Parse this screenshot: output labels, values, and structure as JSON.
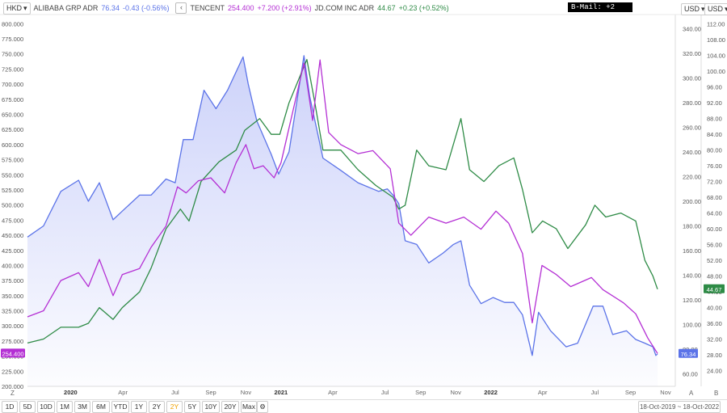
{
  "header": {
    "currency_selector": "HKD",
    "news_ticker": "B-Mail: +2",
    "right_currency_1": "USD",
    "right_currency_2": "USD",
    "collapse_icon": "chevron-left-icon",
    "legend": [
      {
        "name": "ALIBABA GRP ADR",
        "price": "76.34",
        "change": "-0.43 (-0.56%)",
        "color": "#5b73e8"
      },
      {
        "name": "TENCENT",
        "price": "254.400",
        "change": "+7.200 (+2.91%)",
        "color": "#b42fd4"
      },
      {
        "name": "JD.COM INC ADR",
        "price": "44.67",
        "change": "+0.23 (+0.52%)",
        "color": "#2e8b46"
      }
    ]
  },
  "chart_data": {
    "type": "line",
    "x_range": [
      "2019-10-18",
      "2022-10-18"
    ],
    "x_ticks": [
      "2020",
      "Apr",
      "Jul",
      "Sep",
      "Nov",
      "2021",
      "Apr",
      "Jul",
      "Sep",
      "Nov",
      "2022",
      "Apr",
      "Jul",
      "Sep",
      "Nov"
    ],
    "y_axes": {
      "left": {
        "unit": "HKD",
        "range": [
          200,
          812.5
        ],
        "ticks": [
          "800.000",
          "775.000",
          "750.000",
          "725.000",
          "700.000",
          "675.000",
          "650.000",
          "625.000",
          "600.000",
          "575.000",
          "550.000",
          "525.000",
          "500.000",
          "475.000",
          "450.000",
          "425.000",
          "400.000",
          "375.000",
          "350.000",
          "325.000",
          "300.000",
          "275.000",
          "250.000",
          "225.000",
          "200.000"
        ]
      },
      "right_1": {
        "unit": "USD",
        "range": [
          50,
          350
        ],
        "ticks": [
          "340.00",
          "320.00",
          "300.00",
          "280.00",
          "260.00",
          "240.00",
          "220.00",
          "200.00",
          "180.00",
          "160.00",
          "140.00",
          "120.00",
          "100.00",
          "80.00",
          "60.00"
        ]
      },
      "right_2": {
        "unit": "USD",
        "range": [
          20,
          114
        ],
        "ticks": [
          "112.00",
          "108.00",
          "104.00",
          "100.00",
          "96.00",
          "92.00",
          "88.00",
          "84.00",
          "80.00",
          "76.00",
          "72.00",
          "68.00",
          "64.00",
          "60.00",
          "56.00",
          "52.00",
          "48.00",
          "44.00",
          "40.00",
          "36.00",
          "32.00",
          "28.00",
          "24.00"
        ]
      }
    },
    "series": [
      {
        "name": "ALIBABA GRP ADR",
        "axis": "right_1",
        "color": "#5b73e8",
        "last_label": "76.34",
        "fill": true,
        "points": [
          [
            "2019-10-18",
            171
          ],
          [
            "2019-11-15",
            180
          ],
          [
            "2019-12-15",
            208
          ],
          [
            "2020-01-15",
            217
          ],
          [
            "2020-02-01",
            200
          ],
          [
            "2020-02-20",
            215
          ],
          [
            "2020-03-15",
            185
          ],
          [
            "2020-03-31",
            192
          ],
          [
            "2020-04-30",
            205
          ],
          [
            "2020-05-20",
            205
          ],
          [
            "2020-06-15",
            218
          ],
          [
            "2020-07-01",
            215
          ],
          [
            "2020-07-15",
            250
          ],
          [
            "2020-08-01",
            250
          ],
          [
            "2020-08-20",
            290
          ],
          [
            "2020-09-10",
            275
          ],
          [
            "2020-09-30",
            290
          ],
          [
            "2020-10-27",
            317
          ],
          [
            "2020-11-05",
            295
          ],
          [
            "2020-11-20",
            265
          ],
          [
            "2020-12-15",
            238
          ],
          [
            "2020-12-28",
            222
          ],
          [
            "2021-01-15",
            240
          ],
          [
            "2021-02-10",
            318
          ],
          [
            "2021-02-20",
            285
          ],
          [
            "2021-03-15",
            235
          ],
          [
            "2021-04-15",
            225
          ],
          [
            "2021-05-15",
            215
          ],
          [
            "2021-06-20",
            208
          ],
          [
            "2021-07-05",
            210
          ],
          [
            "2021-07-15",
            205
          ],
          [
            "2021-07-25",
            198
          ],
          [
            "2021-08-05",
            168
          ],
          [
            "2021-08-25",
            165
          ],
          [
            "2021-09-15",
            150
          ],
          [
            "2021-10-10",
            158
          ],
          [
            "2021-10-28",
            165
          ],
          [
            "2021-11-10",
            168
          ],
          [
            "2021-11-25",
            132
          ],
          [
            "2021-12-15",
            117
          ],
          [
            "2022-01-05",
            122
          ],
          [
            "2022-01-25",
            118
          ],
          [
            "2022-02-10",
            118
          ],
          [
            "2022-02-25",
            108
          ],
          [
            "2022-03-14",
            75
          ],
          [
            "2022-03-25",
            110
          ],
          [
            "2022-04-15",
            95
          ],
          [
            "2022-05-12",
            82
          ],
          [
            "2022-06-01",
            85
          ],
          [
            "2022-06-28",
            115
          ],
          [
            "2022-07-15",
            115
          ],
          [
            "2022-08-01",
            92
          ],
          [
            "2022-08-25",
            95
          ],
          [
            "2022-09-10",
            88
          ],
          [
            "2022-09-26",
            85
          ],
          [
            "2022-10-10",
            82
          ],
          [
            "2022-10-15",
            75
          ],
          [
            "2022-10-18",
            76.34
          ]
        ]
      },
      {
        "name": "TENCENT",
        "axis": "left",
        "color": "#b42fd4",
        "last_label": "254.400",
        "points": [
          [
            "2019-10-18",
            315
          ],
          [
            "2019-11-15",
            325
          ],
          [
            "2019-12-15",
            375
          ],
          [
            "2020-01-15",
            388
          ],
          [
            "2020-02-01",
            365
          ],
          [
            "2020-02-20",
            410
          ],
          [
            "2020-03-15",
            350
          ],
          [
            "2020-03-31",
            385
          ],
          [
            "2020-04-30",
            395
          ],
          [
            "2020-05-20",
            430
          ],
          [
            "2020-06-15",
            465
          ],
          [
            "2020-07-05",
            530
          ],
          [
            "2020-07-20",
            520
          ],
          [
            "2020-08-10",
            540
          ],
          [
            "2020-09-01",
            545
          ],
          [
            "2020-09-25",
            520
          ],
          [
            "2020-10-15",
            570
          ],
          [
            "2020-11-01",
            600
          ],
          [
            "2020-11-15",
            560
          ],
          [
            "2020-12-01",
            565
          ],
          [
            "2020-12-20",
            545
          ],
          [
            "2021-01-01",
            570
          ],
          [
            "2021-02-10",
            735
          ],
          [
            "2021-02-25",
            640
          ],
          [
            "2021-03-10",
            740
          ],
          [
            "2021-03-25",
            620
          ],
          [
            "2021-04-15",
            600
          ],
          [
            "2021-05-15",
            585
          ],
          [
            "2021-06-10",
            590
          ],
          [
            "2021-07-10",
            560
          ],
          [
            "2021-07-25",
            470
          ],
          [
            "2021-08-15",
            450
          ],
          [
            "2021-09-15",
            480
          ],
          [
            "2021-10-15",
            470
          ],
          [
            "2021-11-15",
            480
          ],
          [
            "2021-12-15",
            460
          ],
          [
            "2022-01-10",
            490
          ],
          [
            "2022-02-01",
            470
          ],
          [
            "2022-02-25",
            420
          ],
          [
            "2022-03-14",
            305
          ],
          [
            "2022-03-31",
            400
          ],
          [
            "2022-04-25",
            385
          ],
          [
            "2022-05-20",
            365
          ],
          [
            "2022-06-25",
            380
          ],
          [
            "2022-07-15",
            360
          ],
          [
            "2022-08-20",
            338
          ],
          [
            "2022-09-10",
            320
          ],
          [
            "2022-10-01",
            280
          ],
          [
            "2022-10-18",
            254.4
          ]
        ]
      },
      {
        "name": "JD.COM INC ADR",
        "axis": "right_2",
        "color": "#2e8b46",
        "last_label": "44.67",
        "points": [
          [
            "2019-10-18",
            31
          ],
          [
            "2019-11-15",
            32
          ],
          [
            "2019-12-15",
            35
          ],
          [
            "2020-01-15",
            35
          ],
          [
            "2020-02-01",
            36
          ],
          [
            "2020-02-20",
            40
          ],
          [
            "2020-03-15",
            37
          ],
          [
            "2020-03-31",
            40
          ],
          [
            "2020-04-30",
            44
          ],
          [
            "2020-05-20",
            50
          ],
          [
            "2020-06-15",
            60
          ],
          [
            "2020-07-10",
            65
          ],
          [
            "2020-07-25",
            62
          ],
          [
            "2020-08-15",
            72
          ],
          [
            "2020-09-15",
            77
          ],
          [
            "2020-10-15",
            80
          ],
          [
            "2020-10-30",
            85
          ],
          [
            "2020-11-25",
            88
          ],
          [
            "2020-12-15",
            84
          ],
          [
            "2020-12-30",
            84
          ],
          [
            "2021-01-15",
            92
          ],
          [
            "2021-02-15",
            103
          ],
          [
            "2021-03-01",
            92
          ],
          [
            "2021-03-15",
            80
          ],
          [
            "2021-04-15",
            80
          ],
          [
            "2021-05-15",
            75
          ],
          [
            "2021-06-15",
            71
          ],
          [
            "2021-07-15",
            68
          ],
          [
            "2021-07-25",
            65
          ],
          [
            "2021-08-05",
            66
          ],
          [
            "2021-08-25",
            80
          ],
          [
            "2021-09-15",
            76
          ],
          [
            "2021-10-15",
            75
          ],
          [
            "2021-11-10",
            88
          ],
          [
            "2021-11-25",
            75
          ],
          [
            "2021-12-20",
            72
          ],
          [
            "2022-01-15",
            76
          ],
          [
            "2022-02-10",
            78
          ],
          [
            "2022-02-25",
            70
          ],
          [
            "2022-03-14",
            59
          ],
          [
            "2022-04-01",
            62
          ],
          [
            "2022-04-25",
            60
          ],
          [
            "2022-05-15",
            55
          ],
          [
            "2022-06-15",
            61
          ],
          [
            "2022-07-01",
            66
          ],
          [
            "2022-07-20",
            63
          ],
          [
            "2022-08-15",
            64
          ],
          [
            "2022-09-10",
            62
          ],
          [
            "2022-09-26",
            52
          ],
          [
            "2022-10-10",
            48
          ],
          [
            "2022-10-18",
            44.67
          ]
        ]
      }
    ],
    "current_labels": {
      "left": "254.400",
      "right_1": "76.34",
      "right_2": "44.67"
    },
    "grid": false,
    "legend_position": "top-left"
  },
  "footer": {
    "ranges": [
      "1D",
      "5D",
      "10D",
      "1M",
      "3M",
      "6M",
      "YTD",
      "1Y",
      "2Y",
      "2Y",
      "5Y",
      "10Y",
      "20Y",
      "Max"
    ],
    "active_range_index": 9,
    "settings_icon": "gear-icon",
    "date_range": "18-Oct-2019 ~ 18-Oct-2022",
    "corner_left": "Z",
    "corner_a": "A",
    "corner_b": "B"
  }
}
